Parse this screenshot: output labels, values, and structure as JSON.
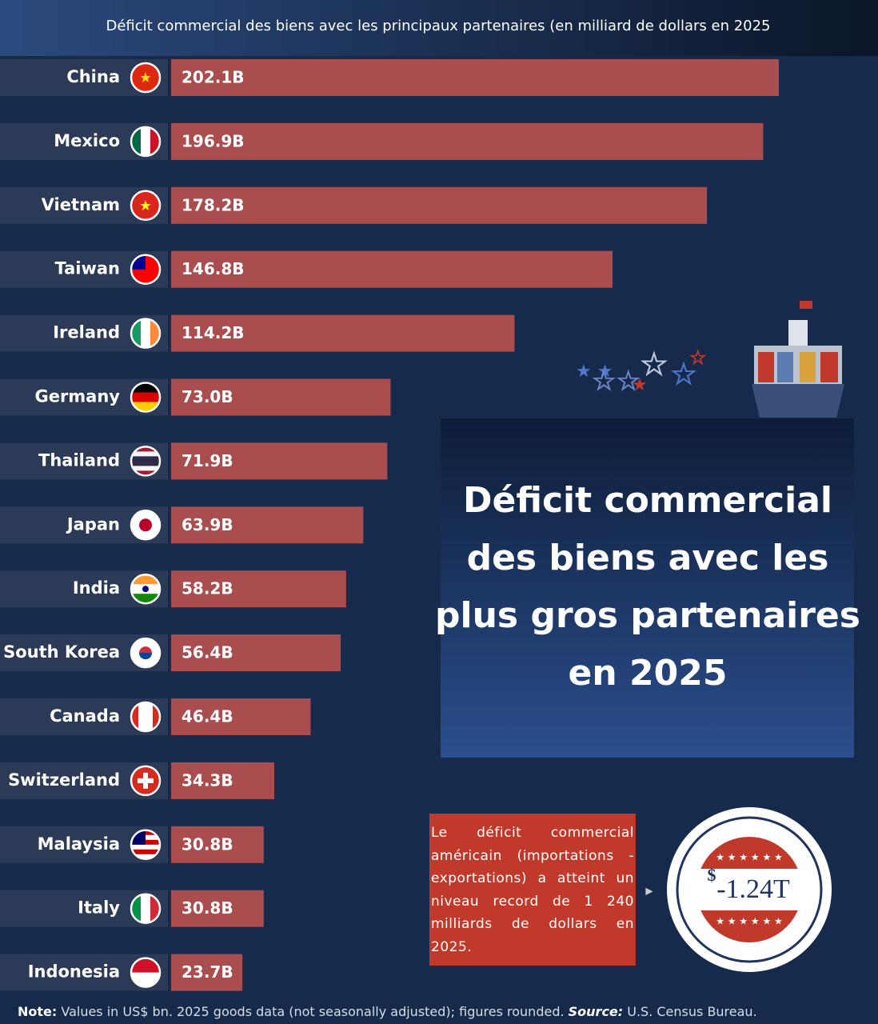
{
  "chart_data": {
    "type": "bar",
    "orientation": "horizontal",
    "title": "Déficit commercial des biens avec les principaux partenaires (en milliard de dollars en 2025",
    "categories": [
      "China",
      "Mexico",
      "Vietnam",
      "Taiwan",
      "Ireland",
      "Germany",
      "Thailand",
      "Japan",
      "India",
      "South Korea",
      "Canada",
      "Switzerland",
      "Malaysia",
      "Italy",
      "Indonesia"
    ],
    "values": [
      202.1,
      196.9,
      178.2,
      146.8,
      114.2,
      73.0,
      71.9,
      63.9,
      58.2,
      56.4,
      46.4,
      34.3,
      30.8,
      30.8,
      23.7
    ],
    "value_labels": [
      "202.1B",
      "196.9B",
      "178.2B",
      "146.8B",
      "114.2B",
      "73.0B",
      "71.9B",
      "63.9B",
      "58.2B",
      "56.4B",
      "46.4B",
      "34.3B",
      "30.8B",
      "30.8B",
      "23.7B"
    ],
    "color": "#a94d4e"
  },
  "heading": [
    "Déficit commercial",
    "des biens avec les",
    "plus gros partenaires",
    "en 2025"
  ],
  "callout": "Le déficit commercial américain (importations - exportations) a atteint un niveau record de 1 240 milliards de dollars en 2025.",
  "badge": {
    "currency": "$",
    "value": "-1.24T"
  },
  "footer": {
    "note_label": "Note:",
    "note_text": " Values in US$ bn. 2025 goods data (not seasonally adjusted); figures rounded. ",
    "source_label": "Source:",
    "source_text": " U.S. Census Bureau."
  }
}
